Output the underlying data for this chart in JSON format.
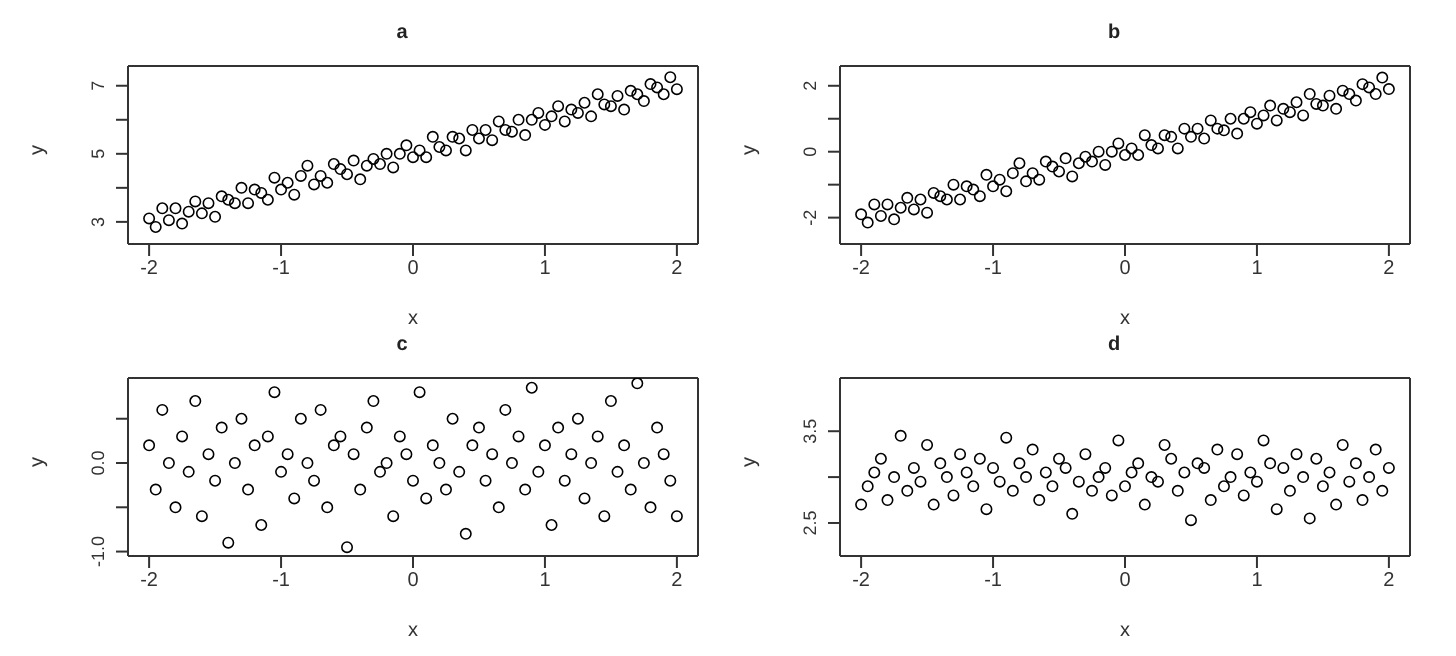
{
  "chart_data": [
    {
      "type": "scatter",
      "title": "a",
      "xlabel": "x",
      "ylabel": "y",
      "marker": "circle",
      "xlim": [
        -2.16,
        2.16
      ],
      "xticks": [
        -2,
        -1,
        0,
        1,
        2
      ],
      "ylim": [
        2.35,
        7.58
      ],
      "yticks": [
        3,
        {
          "value": 4,
          "label": null
        },
        5,
        {
          "value": 6,
          "label": null
        },
        7
      ],
      "x": [
        -2,
        -1.95,
        -1.9,
        -1.85,
        -1.8,
        -1.75,
        -1.7,
        -1.65,
        -1.6,
        -1.55,
        -1.5,
        -1.45,
        -1.4,
        -1.35,
        -1.3,
        -1.25,
        -1.2,
        -1.15,
        -1.1,
        -1.05,
        -1,
        -0.95,
        -0.9,
        -0.85,
        -0.8,
        -0.75,
        -0.7,
        -0.65,
        -0.6,
        -0.55,
        -0.5,
        -0.45,
        -0.4,
        -0.35,
        -0.3,
        -0.25,
        -0.2,
        -0.15,
        -0.1,
        -0.05,
        0,
        0.05,
        0.1,
        0.15,
        0.2,
        0.25,
        0.3,
        0.35,
        0.4,
        0.45,
        0.5,
        0.55,
        0.6,
        0.65,
        0.7,
        0.75,
        0.8,
        0.85,
        0.9,
        0.95,
        1,
        1.05,
        1.1,
        1.15,
        1.2,
        1.25,
        1.3,
        1.35,
        1.4,
        1.45,
        1.5,
        1.55,
        1.6,
        1.65,
        1.7,
        1.75,
        1.8,
        1.85,
        1.9,
        1.95,
        2
      ],
      "series": [
        {
          "color": "#000000",
          "values": [
            3.1,
            2.85,
            3.4,
            3.05,
            3.4,
            2.95,
            3.3,
            3.6,
            3.25,
            3.55,
            3.15,
            3.75,
            3.65,
            3.55,
            4.0,
            3.55,
            3.95,
            3.85,
            3.65,
            4.3,
            3.95,
            4.15,
            3.8,
            4.35,
            4.65,
            4.1,
            4.35,
            4.15,
            4.7,
            4.55,
            4.4,
            4.8,
            4.25,
            4.65,
            4.85,
            4.7,
            5.0,
            4.6,
            5.0,
            5.25,
            4.9,
            5.1,
            4.9,
            5.5,
            5.2,
            5.1,
            5.5,
            5.45,
            5.1,
            5.7,
            5.45,
            5.7,
            5.4,
            5.95,
            5.7,
            5.65,
            6.0,
            5.55,
            6.0,
            6.2,
            5.85,
            6.1,
            6.4,
            5.95,
            6.3,
            6.2,
            6.5,
            6.1,
            6.75,
            6.45,
            6.4,
            6.7,
            6.3,
            6.85,
            6.75,
            6.55,
            7.05,
            6.95,
            6.75,
            7.25,
            6.9
          ]
        }
      ]
    },
    {
      "type": "scatter",
      "title": "b",
      "xlabel": "x",
      "ylabel": "y",
      "marker": "circle",
      "xlim": [
        -2.16,
        2.16
      ],
      "xticks": [
        -2,
        -1,
        0,
        1,
        2
      ],
      "ylim": [
        -2.8,
        2.6
      ],
      "yticks": [
        -2,
        {
          "value": -1,
          "label": null
        },
        0,
        {
          "value": 1,
          "label": null
        },
        2
      ],
      "x": [
        -2,
        -1.95,
        -1.9,
        -1.85,
        -1.8,
        -1.75,
        -1.7,
        -1.65,
        -1.6,
        -1.55,
        -1.5,
        -1.45,
        -1.4,
        -1.35,
        -1.3,
        -1.25,
        -1.2,
        -1.15,
        -1.1,
        -1.05,
        -1,
        -0.95,
        -0.9,
        -0.85,
        -0.8,
        -0.75,
        -0.7,
        -0.65,
        -0.6,
        -0.55,
        -0.5,
        -0.45,
        -0.4,
        -0.35,
        -0.3,
        -0.25,
        -0.2,
        -0.15,
        -0.1,
        -0.05,
        0,
        0.05,
        0.1,
        0.15,
        0.2,
        0.25,
        0.3,
        0.35,
        0.4,
        0.45,
        0.5,
        0.55,
        0.6,
        0.65,
        0.7,
        0.75,
        0.8,
        0.85,
        0.9,
        0.95,
        1,
        1.05,
        1.1,
        1.15,
        1.2,
        1.25,
        1.3,
        1.35,
        1.4,
        1.45,
        1.5,
        1.55,
        1.6,
        1.65,
        1.7,
        1.75,
        1.8,
        1.85,
        1.9,
        1.95,
        2
      ],
      "series": [
        {
          "color": "#000000",
          "values": [
            -1.9,
            -2.15,
            -1.6,
            -1.95,
            -1.6,
            -2.05,
            -1.7,
            -1.4,
            -1.75,
            -1.45,
            -1.85,
            -1.25,
            -1.35,
            -1.45,
            -1.0,
            -1.45,
            -1.05,
            -1.15,
            -1.35,
            -0.7,
            -1.05,
            -0.85,
            -1.2,
            -0.65,
            -0.35,
            -0.9,
            -0.65,
            -0.85,
            -0.3,
            -0.45,
            -0.6,
            -0.2,
            -0.75,
            -0.35,
            -0.15,
            -0.3,
            0.0,
            -0.4,
            0.0,
            0.25,
            -0.1,
            0.1,
            -0.1,
            0.5,
            0.2,
            0.1,
            0.5,
            0.45,
            0.1,
            0.7,
            0.45,
            0.7,
            0.4,
            0.95,
            0.7,
            0.65,
            1.0,
            0.55,
            1.0,
            1.2,
            0.85,
            1.1,
            1.4,
            0.95,
            1.3,
            1.2,
            1.5,
            1.1,
            1.75,
            1.45,
            1.4,
            1.7,
            1.3,
            1.85,
            1.75,
            1.55,
            2.05,
            1.95,
            1.75,
            2.25,
            1.9
          ]
        }
      ]
    },
    {
      "type": "scatter",
      "title": "c",
      "xlabel": "x",
      "ylabel": "y",
      "marker": "circle",
      "xlim": [
        -2.16,
        2.16
      ],
      "xticks": [
        -2,
        -1,
        0,
        1,
        2
      ],
      "ylim": [
        -1.05,
        0.96
      ],
      "yticks": [
        {
          "value": -1,
          "label": "-1.0"
        },
        {
          "value": -0.5,
          "label": null
        },
        {
          "value": 0,
          "label": "0.0"
        },
        {
          "value": 0.5,
          "label": null
        }
      ],
      "x": [
        -2,
        -1.95,
        -1.9,
        -1.85,
        -1.8,
        -1.75,
        -1.7,
        -1.65,
        -1.6,
        -1.55,
        -1.5,
        -1.45,
        -1.4,
        -1.35,
        -1.3,
        -1.25,
        -1.2,
        -1.15,
        -1.1,
        -1.05,
        -1,
        -0.95,
        -0.9,
        -0.85,
        -0.8,
        -0.75,
        -0.7,
        -0.65,
        -0.6,
        -0.55,
        -0.5,
        -0.45,
        -0.4,
        -0.35,
        -0.3,
        -0.25,
        -0.2,
        -0.15,
        -0.1,
        -0.05,
        0,
        0.05,
        0.1,
        0.15,
        0.2,
        0.25,
        0.3,
        0.35,
        0.4,
        0.45,
        0.5,
        0.55,
        0.6,
        0.65,
        0.7,
        0.75,
        0.8,
        0.85,
        0.9,
        0.95,
        1,
        1.05,
        1.1,
        1.15,
        1.2,
        1.25,
        1.3,
        1.35,
        1.4,
        1.45,
        1.5,
        1.55,
        1.6,
        1.65,
        1.7,
        1.75,
        1.8,
        1.85,
        1.9,
        1.95,
        2
      ],
      "series": [
        {
          "color": "#000000",
          "values": [
            0.2,
            -0.3,
            0.6,
            0.0,
            -0.5,
            0.3,
            -0.1,
            0.7,
            -0.6,
            0.1,
            -0.2,
            0.4,
            -0.9,
            0.0,
            0.5,
            -0.3,
            0.2,
            -0.7,
            0.3,
            0.8,
            -0.1,
            0.1,
            -0.4,
            0.5,
            0.0,
            -0.2,
            0.6,
            -0.5,
            0.2,
            0.3,
            -0.95,
            0.1,
            -0.3,
            0.4,
            0.7,
            -0.1,
            0.0,
            -0.6,
            0.3,
            0.1,
            -0.2,
            0.8,
            -0.4,
            0.2,
            0.0,
            -0.3,
            0.5,
            -0.1,
            -0.8,
            0.2,
            0.4,
            -0.2,
            0.1,
            -0.5,
            0.6,
            0.0,
            0.3,
            -0.3,
            0.85,
            -0.1,
            0.2,
            -0.7,
            0.4,
            -0.2,
            0.1,
            0.5,
            -0.4,
            0.0,
            0.3,
            -0.6,
            0.7,
            -0.1,
            0.2,
            -0.3,
            0.9,
            0.0,
            -0.5,
            0.4,
            0.1,
            -0.2,
            -0.6
          ]
        }
      ]
    },
    {
      "type": "scatter",
      "title": "d",
      "xlabel": "x",
      "ylabel": "y",
      "marker": "circle",
      "xlim": [
        -2.16,
        2.16
      ],
      "xticks": [
        -2,
        -1,
        0,
        1,
        2
      ],
      "ylim": [
        2.14,
        4.08
      ],
      "yticks": [
        2.5,
        {
          "value": 3,
          "label": null
        },
        3.5
      ],
      "x": [
        -2,
        -1.95,
        -1.9,
        -1.85,
        -1.8,
        -1.75,
        -1.7,
        -1.65,
        -1.6,
        -1.55,
        -1.5,
        -1.45,
        -1.4,
        -1.35,
        -1.3,
        -1.25,
        -1.2,
        -1.15,
        -1.1,
        -1.05,
        -1,
        -0.95,
        -0.9,
        -0.85,
        -0.8,
        -0.75,
        -0.7,
        -0.65,
        -0.6,
        -0.55,
        -0.5,
        -0.45,
        -0.4,
        -0.35,
        -0.3,
        -0.25,
        -0.2,
        -0.15,
        -0.1,
        -0.05,
        0,
        0.05,
        0.1,
        0.15,
        0.2,
        0.25,
        0.3,
        0.35,
        0.4,
        0.45,
        0.5,
        0.55,
        0.6,
        0.65,
        0.7,
        0.75,
        0.8,
        0.85,
        0.9,
        0.95,
        1,
        1.05,
        1.1,
        1.15,
        1.2,
        1.25,
        1.3,
        1.35,
        1.4,
        1.45,
        1.5,
        1.55,
        1.6,
        1.65,
        1.7,
        1.75,
        1.8,
        1.85,
        1.9,
        1.95,
        2
      ],
      "series": [
        {
          "color": "#000000",
          "values": [
            2.7,
            2.9,
            3.05,
            3.2,
            2.75,
            3.0,
            3.45,
            2.85,
            3.1,
            2.95,
            3.35,
            2.7,
            3.15,
            3.0,
            2.8,
            3.25,
            3.05,
            2.9,
            3.2,
            2.65,
            3.1,
            2.95,
            3.43,
            2.85,
            3.15,
            3.0,
            3.3,
            2.75,
            3.05,
            2.9,
            3.2,
            3.1,
            2.6,
            2.95,
            3.25,
            2.85,
            3.0,
            3.1,
            2.8,
            3.4,
            2.9,
            3.05,
            3.15,
            2.7,
            3.0,
            2.95,
            3.35,
            3.2,
            2.85,
            3.05,
            2.53,
            3.15,
            3.1,
            2.75,
            3.3,
            2.9,
            3.0,
            3.25,
            2.8,
            3.05,
            2.95,
            3.4,
            3.15,
            2.65,
            3.1,
            2.85,
            3.25,
            3.0,
            2.55,
            3.2,
            2.9,
            3.05,
            2.7,
            3.35,
            2.95,
            3.15,
            2.75,
            3.0,
            3.3,
            2.85,
            3.1
          ]
        }
      ]
    }
  ]
}
